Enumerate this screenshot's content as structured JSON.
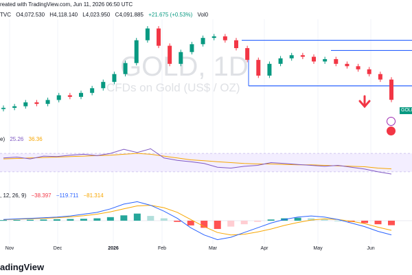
{
  "header": {
    "created_line": "reated with TradingView.com, Jun 11, 2026 06:50 UTC",
    "symbol_short": "TVC",
    "open": "O4,072.530",
    "high": "H4,118.140",
    "low": "L4,023.950",
    "close": "C4,091.885",
    "change": "+21.675 (+0.53%)",
    "volume": "Vol0"
  },
  "watermark": {
    "symbol": "GOLD, 1D",
    "description": "CFDs on Gold (US$ / OZ)"
  },
  "rsi_legend": {
    "name": "e)",
    "rsi": "25.26",
    "ma": "36.36"
  },
  "macd_legend": {
    "params": ", 12, 26, 9)",
    "histogram": "−38.397",
    "macd": "−119.711",
    "signal": "−81.314"
  },
  "price_tag": "GOLD",
  "brand": "adingView",
  "colors": {
    "up": "#089981",
    "down": "#f23645",
    "line": "#2962ff",
    "rsi": "#7e57c2",
    "signal": "#f7a600"
  },
  "chart_data": [
    {
      "type": "candlestick",
      "title": "GOLD, 1D",
      "x": [
        "Nov",
        "Dec",
        "2026",
        "Feb",
        "Mar",
        "Apr",
        "May",
        "Jun"
      ],
      "closes": [
        3990,
        4010,
        4060,
        4040,
        4090,
        4150,
        4130,
        4180,
        4240,
        4320,
        4420,
        4560,
        4850,
        5000,
        4780,
        4550,
        4700,
        4800,
        4880,
        4900,
        4850,
        4750,
        4600,
        4400,
        4550,
        4620,
        4660,
        4640,
        4580,
        4610,
        4550,
        4520,
        4480,
        4420,
        4350,
        4091.885
      ],
      "horizontal_levels": [
        4850,
        4720,
        4270
      ],
      "annotation": "down-arrow"
    },
    {
      "type": "line",
      "title": "RSI",
      "series": [
        {
          "values": [
            60,
            62,
            58,
            64,
            63,
            66,
            68,
            65,
            70,
            79,
            72,
            80,
            60,
            55,
            52,
            48,
            40,
            38,
            42,
            44,
            50,
            48,
            46,
            44,
            42,
            44,
            40,
            36,
            30,
            25.26
          ]
        },
        {
          "values": [
            58,
            59,
            60,
            61,
            62,
            63,
            64,
            65,
            66,
            68,
            70,
            68,
            64,
            60,
            56,
            54,
            52,
            50,
            48,
            47,
            47,
            46,
            45,
            45,
            44,
            43,
            42,
            41,
            38,
            36.36
          ]
        }
      ]
    },
    {
      "type": "bar",
      "title": "MACD",
      "series": [
        {
          "values": [
            5,
            6,
            8,
            10,
            12,
            14,
            16,
            20,
            30,
            45,
            60,
            40,
            20,
            -10,
            -40,
            -60,
            -70,
            -50,
            -30,
            -10,
            10,
            20,
            25,
            20,
            10,
            0,
            -10,
            -20,
            -30,
            -38.397
          ]
        },
        {
          "values": [
            10,
            15,
            20,
            25,
            30,
            40,
            55,
            70,
            100,
            140,
            160,
            130,
            80,
            20,
            -60,
            -120,
            -160,
            -140,
            -100,
            -60,
            -20,
            10,
            30,
            40,
            30,
            10,
            -20,
            -50,
            -90,
            -119.711
          ]
        },
        {
          "values": [
            8,
            12,
            16,
            20,
            25,
            32,
            42,
            55,
            75,
            100,
            125,
            130,
            110,
            70,
            10,
            -50,
            -100,
            -120,
            -115,
            -95,
            -70,
            -40,
            -15,
            5,
            15,
            10,
            -5,
            -25,
            -55,
            -81.314
          ]
        }
      ]
    }
  ]
}
